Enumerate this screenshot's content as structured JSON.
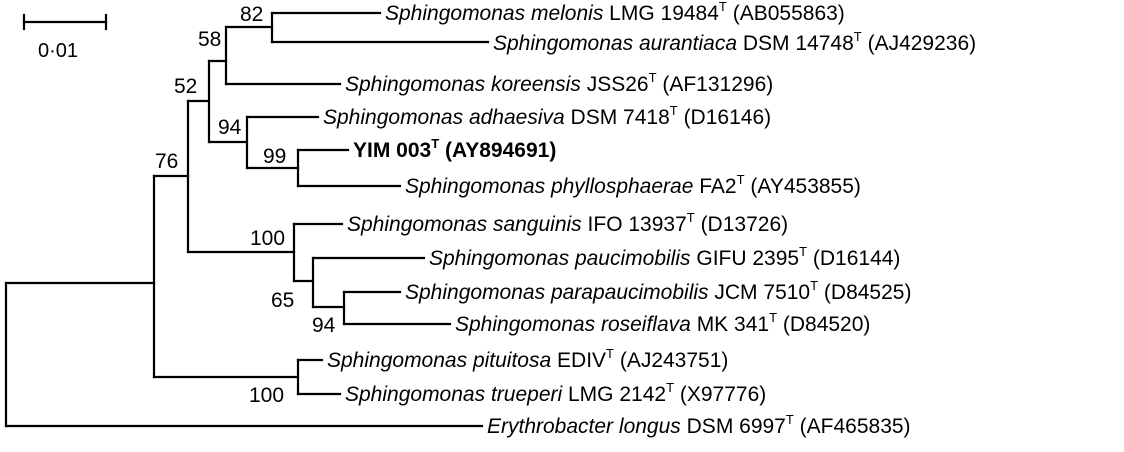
{
  "scale_bar": {
    "label": "0·01"
  },
  "leaves": [
    {
      "genus": "Sphingomonas",
      "species": "melonis",
      "strain": "LMG 19484",
      "type_mark": "T",
      "accession": "(AB055863)",
      "bold": false
    },
    {
      "genus": "Sphingomonas",
      "species": "aurantiaca",
      "strain": "DSM 14748",
      "type_mark": "T",
      "accession": "(AJ429236)",
      "bold": false
    },
    {
      "genus": "Sphingomonas",
      "species": "koreensis",
      "strain": "JSS26",
      "type_mark": "T",
      "accession": "(AF131296)",
      "bold": false
    },
    {
      "genus": "Sphingomonas",
      "species": "adhaesiva",
      "strain": "DSM 7418",
      "type_mark": "T",
      "accession": "(D16146)",
      "bold": false
    },
    {
      "genus": "",
      "species": "",
      "strain": "YIM 003",
      "type_mark": "T",
      "accession": "(AY894691)",
      "bold": true
    },
    {
      "genus": "Sphingomonas",
      "species": "phyllosphaerae",
      "strain": "FA2",
      "type_mark": "T",
      "accession": "(AY453855)",
      "bold": false
    },
    {
      "genus": "Sphingomonas",
      "species": "sanguinis",
      "strain": "IFO 13937",
      "type_mark": "T",
      "accession": "(D13726)",
      "bold": false
    },
    {
      "genus": "Sphingomonas",
      "species": "paucimobilis",
      "strain": "GIFU 2395",
      "type_mark": "T",
      "accession": "(D16144)",
      "bold": false
    },
    {
      "genus": "Sphingomonas",
      "species": "parapaucimobilis",
      "strain": "JCM 7510",
      "type_mark": "T",
      "accession": "(D84525)",
      "bold": false
    },
    {
      "genus": "Sphingomonas",
      "species": "roseiflava",
      "strain": "MK 341",
      "type_mark": "T",
      "accession": "(D84520)",
      "bold": false
    },
    {
      "genus": "Sphingomonas",
      "species": "pituitosa",
      "strain": "EDIV",
      "type_mark": "T",
      "accession": "(AJ243751)",
      "bold": false
    },
    {
      "genus": "Sphingomonas",
      "species": "trueperi",
      "strain": "LMG 2142",
      "type_mark": "T",
      "accession": "(X97776)",
      "bold": false
    },
    {
      "genus": "Erythrobacter",
      "species": "longus",
      "strain": "DSM 6997",
      "type_mark": "T",
      "accession": "(AF465835)",
      "bold": false
    }
  ],
  "bootstrap": [
    "82",
    "58",
    "52",
    "94",
    "99",
    "76",
    "100",
    "65",
    "94",
    "100"
  ]
}
